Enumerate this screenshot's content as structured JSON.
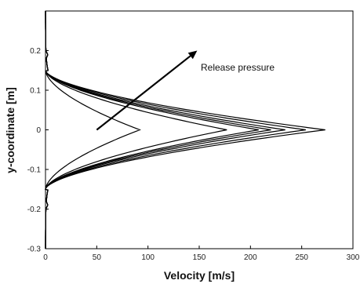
{
  "chart_data": {
    "type": "line",
    "title": "",
    "xlabel": "Velocity [m/s]",
    "ylabel": "y-coordinate [m]",
    "xlim": [
      0,
      300
    ],
    "ylim": [
      -0.3,
      0.3
    ],
    "xticks": [
      0,
      50,
      100,
      150,
      200,
      250,
      300
    ],
    "yticks": [
      0.2,
      0.1,
      0,
      -0.1,
      -0.2,
      -0.3
    ],
    "ytick_labels": [
      "0.2",
      "0.1",
      "0",
      "-0.1",
      "-0.2",
      "-0.3"
    ],
    "grid": false,
    "annotation": {
      "text": "Release pressure",
      "arrow_from": [
        50,
        0
      ],
      "arrow_to": [
        148,
        0.2
      ]
    },
    "series_peaks": [
      92,
      177,
      208,
      220,
      234,
      254,
      273
    ],
    "profile_half_width": 0.15
  }
}
